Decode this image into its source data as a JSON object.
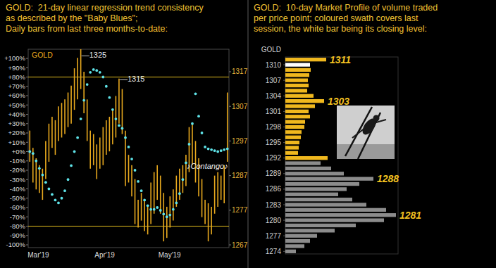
{
  "chart_data": [
    {
      "type": "hilo",
      "title": [
        "GOLD:  21-day linear regression trend consistency",
        "as described by the \"Baby Blues\";",
        "Daily bars from last three months-to-date:"
      ],
      "categories": [
        "Mar'19",
        null,
        null,
        null,
        null,
        null,
        null,
        null,
        null,
        null,
        null,
        null,
        null,
        null,
        null,
        null,
        null,
        null,
        null,
        null,
        null,
        "Apr'19",
        null,
        null,
        null,
        null,
        null,
        null,
        null,
        null,
        null,
        null,
        null,
        null,
        null,
        null,
        null,
        null,
        null,
        null,
        null,
        "May'19",
        null,
        null,
        null,
        null,
        null,
        null,
        null,
        null,
        null,
        null,
        null,
        null,
        null,
        null,
        null,
        null,
        null,
        null,
        null,
        null,
        null
      ],
      "series": [
        {
          "name": "GOLD",
          "type": "hilo",
          "axis": "y2",
          "color": "#e8a91e",
          "high": [
            1300,
            1295,
            1292,
            1290,
            1289,
            1297,
            1302,
            1304,
            1303,
            1307,
            1308,
            1309,
            1311,
            1313,
            1318,
            1321,
            1325,
            1317,
            1309,
            1300,
            1299,
            1296,
            1298,
            1301,
            1303,
            1304,
            1306,
            1310,
            1315,
            1312,
            1300,
            1293,
            1290,
            1286,
            1280,
            1282,
            1280,
            1278,
            1285,
            1288,
            1290,
            1287,
            1282,
            1278,
            1281,
            1283,
            1287,
            1289,
            1290,
            1293,
            1301,
            1302,
            1297,
            1292,
            1286,
            1280,
            1279,
            1278,
            1287,
            1288,
            1287,
            1290,
            1311
          ],
          "low": [
            1291,
            1285,
            1283,
            1282,
            1280,
            1286,
            1291,
            1295,
            1293,
            1297,
            1298,
            1299,
            1301,
            1302,
            1306,
            1309,
            1312,
            1305,
            1297,
            1289,
            1290,
            1286,
            1289,
            1290,
            1293,
            1294,
            1296,
            1298,
            1302,
            1299,
            1284,
            1285,
            1281,
            1273,
            1272,
            1274,
            1271,
            1270,
            1273,
            1276,
            1280,
            1276,
            1268,
            1269,
            1272,
            1274,
            1278,
            1280,
            1282,
            1284,
            1288,
            1290,
            1285,
            1281,
            1275,
            1273,
            1268,
            1270,
            1276,
            1278,
            1280,
            1279,
            1291
          ]
        },
        {
          "type": "scatter",
          "color": "#5fe3e8",
          "marker": "circle",
          "values": [
            0,
            -2,
            -10,
            -18,
            -25,
            -33,
            -40,
            -46,
            -52,
            -55,
            -50,
            -42,
            -30,
            -15,
            0,
            15,
            35,
            55,
            72,
            85,
            88,
            87,
            85,
            80,
            70,
            58,
            45,
            35,
            28,
            25,
            15,
            5,
            -8,
            -20,
            -32,
            -42,
            -52,
            -58,
            -62,
            -62,
            -60,
            -63,
            -67,
            -70,
            -68,
            -62,
            -55,
            -45,
            -30,
            -12,
            8,
            30,
            62,
            38,
            20,
            5,
            3,
            2,
            1,
            0,
            1,
            2,
            3
          ]
        }
      ],
      "ylim": [
        -103,
        109.8
      ],
      "yticks": [
        {
          "value": 100,
          "label": "+100%"
        },
        {
          "value": 90,
          "label": "+90%"
        },
        {
          "value": 80,
          "label": "+80%"
        },
        {
          "value": 70,
          "label": "+70%"
        },
        {
          "value": 60,
          "label": "+60%"
        },
        {
          "value": 50,
          "label": "+50%"
        },
        {
          "value": 40,
          "label": "+40%"
        },
        {
          "value": 30,
          "label": "+30%"
        },
        {
          "value": 20,
          "label": "+20%"
        },
        {
          "value": 10,
          "label": "+10%"
        },
        {
          "value": 0,
          "label": "+0%"
        },
        {
          "value": -10,
          "label": "-10%"
        },
        {
          "value": -20,
          "label": "-20%"
        },
        {
          "value": -30,
          "label": "-30%"
        },
        {
          "value": -40,
          "label": "-40%"
        },
        {
          "value": -50,
          "label": "-50%"
        },
        {
          "value": -60,
          "label": "-60%"
        },
        {
          "value": -70,
          "label": "-70%"
        },
        {
          "value": -80,
          "label": "-80%"
        },
        {
          "value": -90,
          "label": "-90%"
        },
        {
          "value": -100,
          "label": "-100%"
        }
      ],
      "y2lim": [
        1266.2,
        1323.5
      ],
      "y2ticks": [
        1267,
        1277,
        1287,
        1297,
        1307,
        1317
      ],
      "hlines": [
        80,
        -80
      ],
      "annotations": [
        {
          "text": "—1325",
          "index": 16,
          "value": 1325
        },
        {
          "text": "—1315",
          "index": 28,
          "value": 1315
        },
        {
          "text": "♪Contango♪"
        }
      ]
    },
    {
      "type": "bar",
      "orientation": "horizontal",
      "title": [
        "GOLD:  10-day Market Profile of volume traded",
        "per price point; coloured swath covers last",
        "session, the white bar being its closing level:"
      ],
      "ylabel": "GOLD",
      "x": [
        1311,
        1310,
        1309,
        1308,
        1307,
        1306,
        1305,
        1304,
        1303,
        1302,
        1301,
        1300,
        1299,
        1298,
        1297,
        1296,
        1295,
        1294,
        1293,
        1292,
        1291,
        1290,
        1289,
        1288,
        1287,
        1286,
        1285,
        1284,
        1283,
        1282,
        1281,
        1280,
        1279,
        1278,
        1277,
        1276,
        1275,
        1274
      ],
      "values": [
        58,
        35,
        36,
        34,
        32,
        33,
        31,
        40,
        55,
        42,
        33,
        35,
        28,
        27,
        23,
        22,
        20,
        19,
        18,
        60,
        50,
        65,
        83,
        125,
        105,
        87,
        75,
        95,
        115,
        143,
        157,
        140,
        100,
        70,
        45,
        35,
        27,
        15
      ],
      "colors": [
        "#f0b81e",
        "#ffffff",
        "#f0b81e",
        "#f0b81e",
        "#f0b81e",
        "#f0b81e",
        "#f0b81e",
        "#f0b81e",
        "#f0b81e",
        "#f0b81e",
        "#f0b81e",
        "#f0b81e",
        "#f0b81e",
        "#f0b81e",
        "#f0b81e",
        "#f0b81e",
        "#f0b81e",
        "#f0b81e",
        "#f0b81e",
        "#f0b81e",
        "#8c8c8c",
        "#8c8c8c",
        "#8c8c8c",
        "#8c8c8c",
        "#8c8c8c",
        "#8c8c8c",
        "#8c8c8c",
        "#8c8c8c",
        "#8c8c8c",
        "#8c8c8c",
        "#8c8c8c",
        "#8c8c8c",
        "#8c8c8c",
        "#8c8c8c",
        "#8c8c8c",
        "#8c8c8c",
        "#8c8c8c",
        "#8c8c8c"
      ],
      "xlim": [
        0,
        160
      ],
      "ylim": [
        1273.5,
        1311.5
      ],
      "yticks": [
        1310,
        1307,
        1304,
        1301,
        1298,
        1295,
        1292,
        1289,
        1286,
        1283,
        1280,
        1277,
        1274
      ],
      "tick_labels": "y",
      "annotations": [
        1311,
        1303,
        1288,
        1281
      ]
    }
  ]
}
